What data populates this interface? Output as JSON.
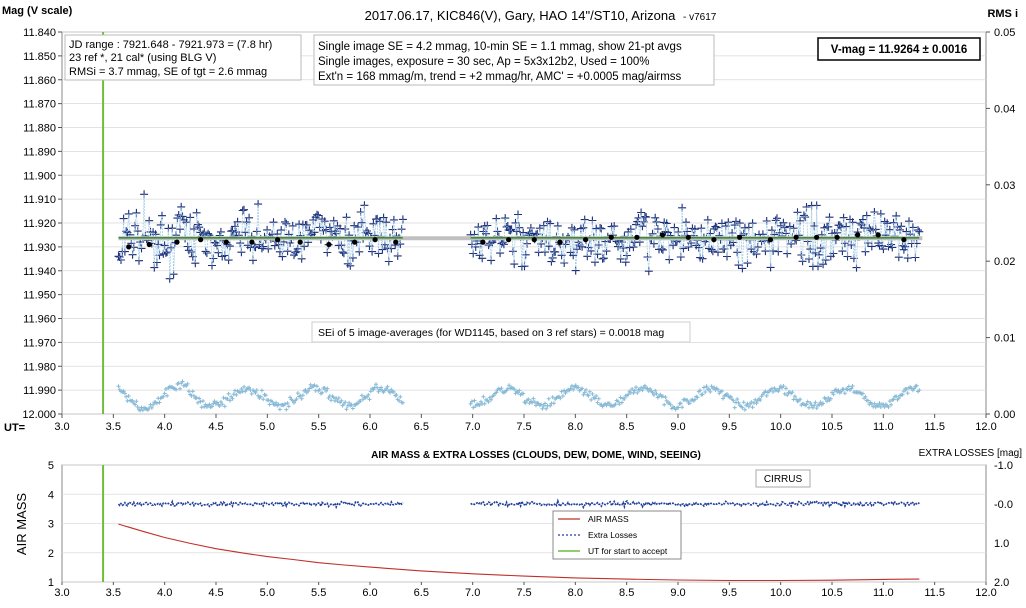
{
  "chart_data": [
    {
      "type": "scatter",
      "title": "2017.06.17,  KIC846(V),  Gary,  HAO 14\"/ST10, Arizona",
      "version": "- v7617",
      "ylabel": "Mag (V scale)",
      "y2label": "RMS i",
      "xaxis_label": "UT=",
      "xlim": [
        3.0,
        12.0
      ],
      "ylim": [
        11.84,
        12.0
      ],
      "y_inverted": true,
      "y2lim": [
        0.0,
        0.05
      ],
      "x_ticks": [
        "3.0",
        "3.5",
        "4.0",
        "4.5",
        "5.0",
        "5.5",
        "6.0",
        "6.5",
        "7.0",
        "7.5",
        "8.0",
        "8.5",
        "9.0",
        "9.5",
        "10.0",
        "10.5",
        "11.0",
        "11.5",
        "12.0"
      ],
      "y_ticks": [
        "11.840",
        "11.850",
        "11.860",
        "11.870",
        "11.880",
        "11.890",
        "11.900",
        "11.910",
        "11.920",
        "11.930",
        "11.940",
        "11.950",
        "11.960",
        "11.970",
        "11.980",
        "11.990",
        "12.000"
      ],
      "y2_ticks": [
        "0.05",
        "0.04",
        "0.03",
        "0.02",
        "0.01",
        "0.00"
      ],
      "info_box_1": [
        "JD range : 7921.648 - 7921.973 = (7.8 hr)",
        "23 ref *, 21 cal* (using BLG V)",
        "RMSi = 3.7 mmag, SE of tgt = 2.6 mmag"
      ],
      "info_box_2": [
        "Single image SE = 4.2 mmag, 10-min SE = 1.1 mmag, show 21-pt avgs",
        "Single images, exposure = 30 sec, Ap = 5x3x12b2, Used = 100%",
        "Ext'n = 168 mmag/m, trend = +2 mmag/hr, AMC' = +0.0005 mag/airmss"
      ],
      "vmag_label": "V-mag = 11.9264 ± 0.0016",
      "sei_note": "SEi of 5 image-averages (for WD1145, based on 3 ref stars) = 0.0018 mag",
      "start_accept_ut": 3.4,
      "mean_level": 11.9264,
      "segments": [
        [
          3.55,
          6.32
        ],
        [
          6.98,
          11.35
        ]
      ],
      "avg_points": [
        {
          "x": 3.65,
          "y": 11.93
        },
        {
          "x": 3.85,
          "y": 11.929
        },
        {
          "x": 4.12,
          "y": 11.928
        },
        {
          "x": 4.35,
          "y": 11.927
        },
        {
          "x": 4.6,
          "y": 11.928
        },
        {
          "x": 4.85,
          "y": 11.928
        },
        {
          "x": 5.1,
          "y": 11.927
        },
        {
          "x": 5.32,
          "y": 11.928
        },
        {
          "x": 5.6,
          "y": 11.929
        },
        {
          "x": 5.85,
          "y": 11.928
        },
        {
          "x": 6.05,
          "y": 11.927
        },
        {
          "x": 6.25,
          "y": 11.928
        },
        {
          "x": 7.1,
          "y": 11.928
        },
        {
          "x": 7.35,
          "y": 11.927
        },
        {
          "x": 7.6,
          "y": 11.927
        },
        {
          "x": 7.85,
          "y": 11.928
        },
        {
          "x": 8.1,
          "y": 11.927
        },
        {
          "x": 8.35,
          "y": 11.926
        },
        {
          "x": 8.6,
          "y": 11.926
        },
        {
          "x": 8.85,
          "y": 11.925
        },
        {
          "x": 9.1,
          "y": 11.926
        },
        {
          "x": 9.35,
          "y": 11.927
        },
        {
          "x": 9.6,
          "y": 11.926
        },
        {
          "x": 9.9,
          "y": 11.927
        },
        {
          "x": 10.15,
          "y": 11.926
        },
        {
          "x": 10.35,
          "y": 11.926
        },
        {
          "x": 10.55,
          "y": 11.926
        },
        {
          "x": 10.75,
          "y": 11.925
        },
        {
          "x": 10.95,
          "y": 11.925
        },
        {
          "x": 11.2,
          "y": 11.927
        }
      ],
      "single_image_mag_range": [
        11.908,
        11.952
      ],
      "rms_range": [
        0.0005,
        0.0045
      ]
    },
    {
      "type": "line",
      "title": "AIR MASS & EXTRA LOSSES (CLOUDS, DEW, DOME, WIND, SEEING)",
      "ylabel": "AIR MASS",
      "y2label": "EXTRA LOSSES [mag]",
      "xlim": [
        3.0,
        12.0
      ],
      "ylim": [
        1,
        5
      ],
      "y2lim": [
        -1.0,
        2.0
      ],
      "x_ticks": [
        "3.0",
        "3.5",
        "4.0",
        "4.5",
        "5.0",
        "5.5",
        "6.0",
        "6.5",
        "7.0",
        "7.5",
        "8.0",
        "8.5",
        "9.0",
        "9.5",
        "10.0",
        "10.5",
        "11.0",
        "11.5",
        "12.0"
      ],
      "y_ticks": [
        "5",
        "4",
        "3",
        "2",
        "1"
      ],
      "y2_ticks": [
        "-1.0",
        "-0.0",
        "1.0",
        "2.0"
      ],
      "annotation": "CIRRUS",
      "legend": [
        "AIR MASS",
        "Extra Losses",
        "UT for start to accept"
      ],
      "series": [
        {
          "name": "AIR MASS",
          "x": [
            3.55,
            3.8,
            4.0,
            4.25,
            4.5,
            4.75,
            5.0,
            5.25,
            5.5,
            5.75,
            6.0,
            6.5,
            7.0,
            7.5,
            8.0,
            8.5,
            9.0,
            9.5,
            10.0,
            10.5,
            11.0,
            11.35
          ],
          "values": [
            2.98,
            2.72,
            2.52,
            2.32,
            2.14,
            2.0,
            1.87,
            1.77,
            1.66,
            1.58,
            1.51,
            1.38,
            1.28,
            1.2,
            1.14,
            1.1,
            1.07,
            1.05,
            1.05,
            1.06,
            1.09,
            1.1
          ]
        },
        {
          "name": "Extra Losses",
          "x": [
            3.55,
            11.35
          ],
          "values": [
            0.0,
            0.0
          ]
        }
      ],
      "start_accept_ut": 3.4
    }
  ]
}
